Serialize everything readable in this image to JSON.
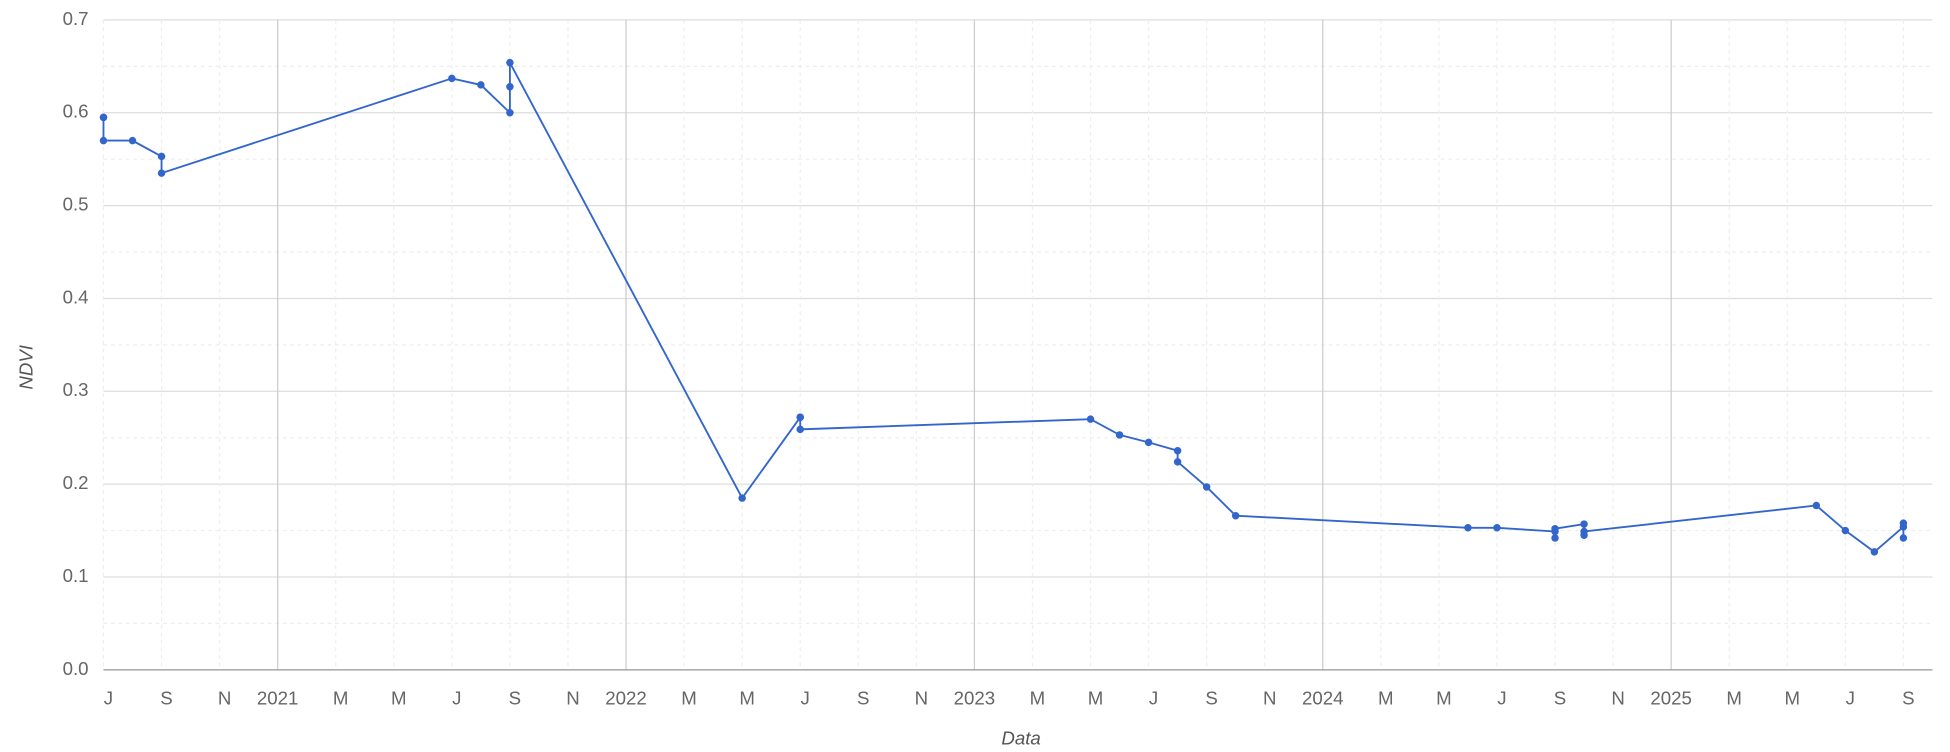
{
  "chart_data": {
    "type": "line",
    "x_title": "Data",
    "y_title": "NDVI",
    "color": "#3366cc",
    "grid": true,
    "x": [
      "2020-07",
      "2020-07",
      "2020-07",
      "2020-08",
      "2020-09",
      "2020-09",
      "2021-07",
      "2021-08",
      "2021-09",
      "2021-09",
      "2021-09",
      "2022-05",
      "2022-07",
      "2022-07",
      "2022-07",
      "2023-05",
      "2023-06",
      "2023-07",
      "2023-08",
      "2023-08",
      "2023-09",
      "2023-10",
      "2024-06",
      "2024-07",
      "2024-09",
      "2024-09",
      "2024-09",
      "2024-10",
      "2024-10",
      "2024-10",
      "2025-06",
      "2025-07",
      "2025-08",
      "2025-09",
      "2025-09",
      "2025-09"
    ],
    "values": [
      0.595,
      0.595,
      0.57,
      0.57,
      0.553,
      0.535,
      0.637,
      0.63,
      0.6,
      0.628,
      0.654,
      0.185,
      0.272,
      0.272,
      0.259,
      0.27,
      0.253,
      0.245,
      0.236,
      0.224,
      0.197,
      0.166,
      0.153,
      0.153,
      0.149,
      0.142,
      0.152,
      0.157,
      0.145,
      0.149,
      0.177,
      0.15,
      0.127,
      0.154,
      0.158,
      0.142
    ],
    "xlim": [
      "2020-07",
      "2025-10"
    ],
    "xticks": [
      {
        "value": "2020-07",
        "label": "J"
      },
      {
        "value": "2020-09",
        "label": "S"
      },
      {
        "value": "2020-11",
        "label": "N"
      },
      {
        "value": "2021-01",
        "label": "2021"
      },
      {
        "value": "2021-03",
        "label": "M"
      },
      {
        "value": "2021-05",
        "label": "M"
      },
      {
        "value": "2021-07",
        "label": "J"
      },
      {
        "value": "2021-09",
        "label": "S"
      },
      {
        "value": "2021-11",
        "label": "N"
      },
      {
        "value": "2022-01",
        "label": "2022"
      },
      {
        "value": "2022-03",
        "label": "M"
      },
      {
        "value": "2022-05",
        "label": "M"
      },
      {
        "value": "2022-07",
        "label": "J"
      },
      {
        "value": "2022-09",
        "label": "S"
      },
      {
        "value": "2022-11",
        "label": "N"
      },
      {
        "value": "2023-01",
        "label": "2023"
      },
      {
        "value": "2023-03",
        "label": "M"
      },
      {
        "value": "2023-05",
        "label": "M"
      },
      {
        "value": "2023-07",
        "label": "J"
      },
      {
        "value": "2023-09",
        "label": "S"
      },
      {
        "value": "2023-11",
        "label": "N"
      },
      {
        "value": "2024-01",
        "label": "2024"
      },
      {
        "value": "2024-03",
        "label": "M"
      },
      {
        "value": "2024-05",
        "label": "M"
      },
      {
        "value": "2024-07",
        "label": "J"
      },
      {
        "value": "2024-09",
        "label": "S"
      },
      {
        "value": "2024-11",
        "label": "N"
      },
      {
        "value": "2025-01",
        "label": "2025"
      },
      {
        "value": "2025-03",
        "label": "M"
      },
      {
        "value": "2025-05",
        "label": "M"
      },
      {
        "value": "2025-07",
        "label": "J"
      },
      {
        "value": "2025-09",
        "label": "S"
      }
    ],
    "ylim": [
      0,
      0.7
    ],
    "yticks": [
      {
        "value": 0,
        "label": "0.0"
      },
      0.1,
      0.2,
      0.3,
      0.4,
      0.5,
      0.6,
      0.7
    ]
  }
}
